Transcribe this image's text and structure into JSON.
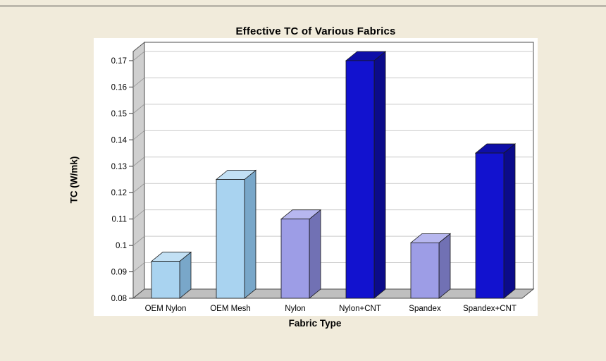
{
  "chart_data": {
    "type": "bar",
    "projection": "3d",
    "title": "Effective TC of Various Fabrics",
    "xlabel": "Fabric Type",
    "ylabel": "TC (W/mk)",
    "categories": [
      "OEM Nylon",
      "OEM Mesh",
      "Nylon",
      "Nylon+CNT",
      "Spandex",
      "Spandex+CNT"
    ],
    "values": [
      0.094,
      0.125,
      0.11,
      0.17,
      0.101,
      0.135
    ],
    "ylim": [
      0.08,
      0.17
    ],
    "ytick_step": 0.01,
    "ytick_labels": [
      "0.08",
      "0.09",
      "0.1",
      "0.11",
      "0.12",
      "0.13",
      "0.14",
      "0.15",
      "0.16",
      "0.17"
    ],
    "bar_color_keys": [
      "light_blue",
      "light_blue",
      "lavender",
      "dark_blue",
      "lavender",
      "dark_blue"
    ],
    "legend": "none",
    "grid": "horizontal",
    "colors": {
      "canvas_bg": "#F1EBDB",
      "plot_backdrop": "#FFFFFF",
      "back_wall": "#FFFFFF",
      "side_wall": "#CFCFCF",
      "floor": "#BFBFBF",
      "gridline": "#C9C9C9",
      "wall_gridline": "#9A9A9A",
      "frame": "#4D4D4D",
      "bar_edge": "#1A1A1A",
      "text": "#000000",
      "light_blue": {
        "front": "#A9D3F0",
        "side": "#79A7C9",
        "top": "#C2E0F4"
      },
      "lavender": {
        "front": "#9D9DE6",
        "side": "#7171B4",
        "top": "#B7B7EF"
      },
      "dark_blue": {
        "front": "#1212CF",
        "side": "#0B0B8A",
        "top": "#0E0EA8"
      }
    }
  }
}
